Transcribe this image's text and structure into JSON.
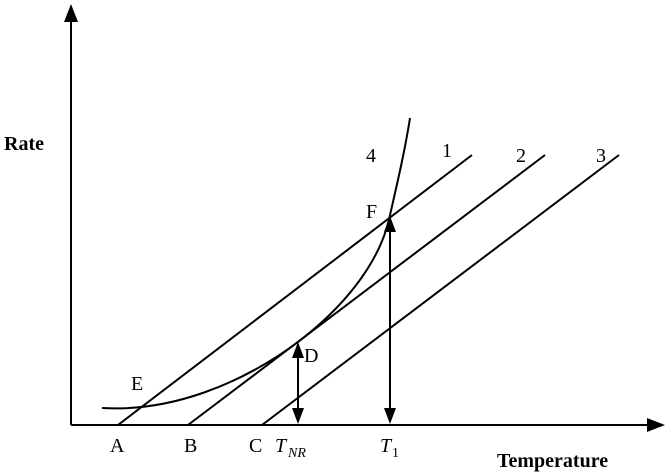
{
  "axes": {
    "y_label": "Rate",
    "x_label": "Temperature"
  },
  "lines": [
    {
      "id": "line-1",
      "label": "1"
    },
    {
      "id": "line-2",
      "label": "2"
    },
    {
      "id": "line-3",
      "label": "3"
    },
    {
      "id": "curve-4",
      "label": "4"
    }
  ],
  "points": {
    "E": "E",
    "F": "F",
    "D": "D"
  },
  "x_markers": {
    "A": "A",
    "B": "B",
    "C": "C",
    "tnr_main": "T",
    "tnr_sub": "NR",
    "t1_main": "T",
    "t1_sub": "1"
  }
}
